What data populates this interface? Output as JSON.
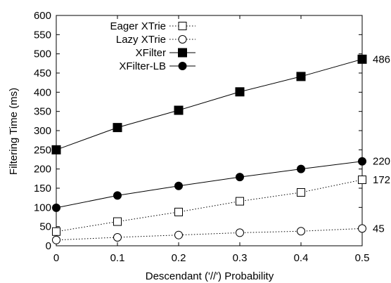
{
  "chart_data": {
    "type": "line",
    "xlabel": "Descendant ('//') Probability",
    "ylabel": "Filtering Time (ms)",
    "x": [
      0,
      0.1,
      0.2,
      0.3,
      0.4,
      0.5
    ],
    "x_ticks": [
      "0",
      "0.1",
      "0.2",
      "0.3",
      "0.4",
      "0.5"
    ],
    "y_ticks": [
      "0",
      "50",
      "100",
      "150",
      "200",
      "250",
      "300",
      "350",
      "400",
      "450",
      "500",
      "550",
      "600"
    ],
    "xlim": [
      0,
      0.5
    ],
    "ylim": [
      0,
      600
    ],
    "grid": false,
    "legend_position": "top-left",
    "series": [
      {
        "name": "Eager XTrie",
        "values": [
          37,
          63,
          88,
          116,
          139,
          172
        ],
        "marker": "open-square",
        "line": "dotted",
        "end_label": "172"
      },
      {
        "name": "Lazy XTrie",
        "values": [
          15,
          22,
          28,
          34,
          38,
          45
        ],
        "marker": "open-circle",
        "line": "dotted",
        "end_label": "45"
      },
      {
        "name": "XFilter",
        "values": [
          250,
          308,
          353,
          401,
          441,
          486
        ],
        "marker": "filled-square",
        "line": "solid",
        "end_label": "486"
      },
      {
        "name": "XFilter-LB",
        "values": [
          99,
          131,
          156,
          179,
          200,
          220
        ],
        "marker": "filled-circle",
        "line": "solid",
        "end_label": "220"
      }
    ]
  }
}
